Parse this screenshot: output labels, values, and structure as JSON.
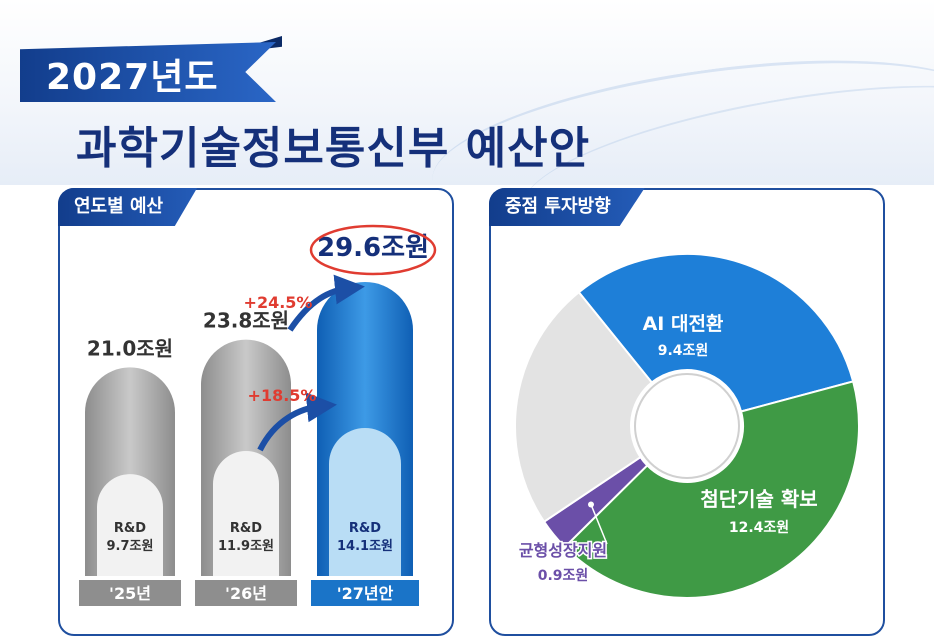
{
  "header": {
    "year_label": "2027년도",
    "title": "과학기술정보통신부 예산안"
  },
  "left_panel": {
    "tab_label": "연도별 예산"
  },
  "right_panel": {
    "tab_label": "중점 투자방향"
  },
  "colors": {
    "navy": "#15307a",
    "blue_bar": "#1a74c8",
    "gray_bar": "#a8a8a8",
    "red": "#e03c31",
    "ai_blue": "#1e7fd8",
    "green": "#3f9a45",
    "purple": "#6b4fa8",
    "light_gray": "#e3e3e3"
  },
  "chart_data": [
    {
      "type": "bar",
      "categories": [
        "'25년",
        "'26년",
        "'27년안"
      ],
      "series": [
        {
          "name": "",
          "values": [
            21.0,
            23.8,
            29.6
          ]
        },
        {
          "name": "R&D",
          "values": [
            9.7,
            11.9,
            14.1
          ]
        }
      ],
      "total_labels": [
        "21.0조원",
        "23.8조원",
        "29.6조원"
      ],
      "inner_labels": [
        {
          "title": "R&D",
          "value": "9.7조원"
        },
        {
          "title": "R&D",
          "value": "11.9조원"
        },
        {
          "title": "R&D",
          "value": "14.1조원"
        }
      ],
      "annotations": [
        "+24.5%",
        "+18.5%"
      ],
      "ylim": [
        0,
        32
      ],
      "title": "",
      "xlabel": "",
      "ylabel": ""
    },
    {
      "type": "pie",
      "labels": [
        "AI 대전환",
        "첨단기술 확보",
        "균형성장지원",
        ""
      ],
      "values": [
        9.4,
        12.4,
        0.9,
        7.0
      ],
      "value_labels": [
        "9.4조원",
        "12.4조원",
        "0.9조원",
        ""
      ],
      "colors": [
        "#1e7fd8",
        "#3f9a45",
        "#6b4fa8",
        "#e3e3e3"
      ],
      "donut": true,
      "title": ""
    }
  ]
}
